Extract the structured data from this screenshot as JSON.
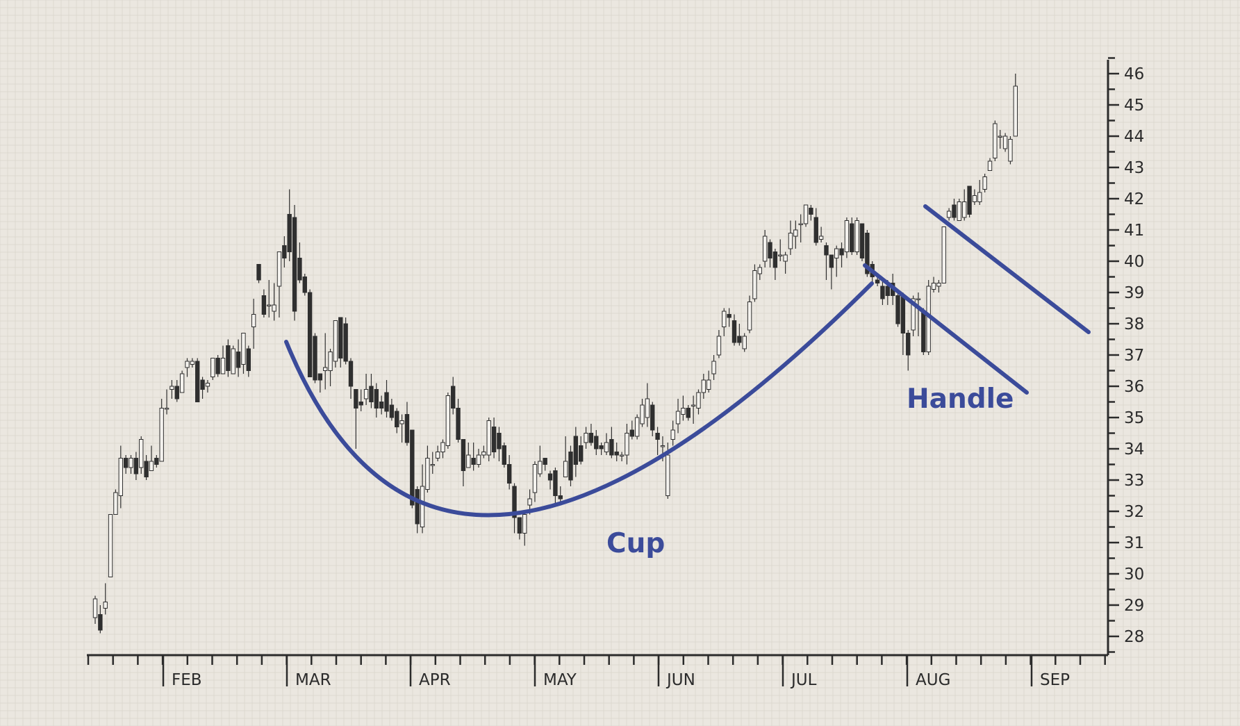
{
  "colors": {
    "background": "#ebe7e0",
    "grid": "#ddd8cf",
    "axis": "#2b2b2b",
    "candle_up_fill": "#f4f2ee",
    "candle_down_fill": "#2f2f2f",
    "candle_outline": "#2f2f2f",
    "annotation": "#3b4b9a"
  },
  "chart_data": {
    "type": "candlestick",
    "title": "",
    "xlabel": "",
    "ylabel": "",
    "ylim": [
      27.5,
      46.6
    ],
    "y_ticks": [
      "28",
      "29",
      "30",
      "31",
      "32",
      "33",
      "34",
      "35",
      "36",
      "37",
      "38",
      "39",
      "40",
      "41",
      "42",
      "43",
      "44",
      "45",
      "46"
    ],
    "months": [
      "FEB",
      "MAR",
      "APR",
      "MAY",
      "JUN",
      "JUL",
      "AUG",
      "SEP"
    ],
    "grid": true,
    "ohlc": [
      [
        28.6,
        29.2,
        28.4,
        29.3
      ],
      [
        28.7,
        28.2,
        28.1,
        29.0
      ],
      [
        28.9,
        29.1,
        28.7,
        29.7
      ],
      [
        29.9,
        31.9,
        29.9,
        31.9
      ],
      [
        31.9,
        32.6,
        31.9,
        32.7
      ],
      [
        32.5,
        33.7,
        32.1,
        34.1
      ],
      [
        33.7,
        33.4,
        33.2,
        33.8
      ],
      [
        33.4,
        33.7,
        33.2,
        33.8
      ],
      [
        33.7,
        33.2,
        33.0,
        33.9
      ],
      [
        33.4,
        34.3,
        33.2,
        34.4
      ],
      [
        33.6,
        33.1,
        33.0,
        33.8
      ],
      [
        33.3,
        33.6,
        33.3,
        34.1
      ],
      [
        33.7,
        33.5,
        33.4,
        33.8
      ],
      [
        33.6,
        35.3,
        33.6,
        35.6
      ],
      [
        35.3,
        35.3,
        35.1,
        35.9
      ],
      [
        35.9,
        36.0,
        35.6,
        36.2
      ],
      [
        36.0,
        35.6,
        35.5,
        36.2
      ],
      [
        35.8,
        36.4,
        35.8,
        36.5
      ],
      [
        36.6,
        36.8,
        36.3,
        36.9
      ],
      [
        36.7,
        36.8,
        36.6,
        36.9
      ],
      [
        36.8,
        35.5,
        35.5,
        36.9
      ],
      [
        36.2,
        35.9,
        35.6,
        36.3
      ],
      [
        36.0,
        36.1,
        35.8,
        36.2
      ],
      [
        36.3,
        36.9,
        36.2,
        36.9
      ],
      [
        36.9,
        36.4,
        36.3,
        37.0
      ],
      [
        36.4,
        36.9,
        36.4,
        37.3
      ],
      [
        37.3,
        36.5,
        36.3,
        37.5
      ],
      [
        36.4,
        37.2,
        36.4,
        37.3
      ],
      [
        37.1,
        36.6,
        36.3,
        37.5
      ],
      [
        36.7,
        37.7,
        36.4,
        37.7
      ],
      [
        37.2,
        36.5,
        36.3,
        37.3
      ],
      [
        37.9,
        38.3,
        37.2,
        38.8
      ],
      [
        39.9,
        39.4,
        39.3,
        39.9
      ],
      [
        38.9,
        38.3,
        38.2,
        39.1
      ],
      [
        38.6,
        38.6,
        38.2,
        39.4
      ],
      [
        38.4,
        38.6,
        38.1,
        39.3
      ],
      [
        39.2,
        40.3,
        38.2,
        40.3
      ],
      [
        40.5,
        40.1,
        39.8,
        40.8
      ],
      [
        41.5,
        40.3,
        40.0,
        42.3
      ],
      [
        41.4,
        38.4,
        38.1,
        41.8
      ],
      [
        40.1,
        39.4,
        39.3,
        40.6
      ],
      [
        39.5,
        39.0,
        38.9,
        39.6
      ],
      [
        39.0,
        36.3,
        36.3,
        39.1
      ],
      [
        37.6,
        36.2,
        36.1,
        37.7
      ],
      [
        36.4,
        36.2,
        35.8,
        36.4
      ],
      [
        36.5,
        36.6,
        35.9,
        37.7
      ],
      [
        36.5,
        37.1,
        36.0,
        37.2
      ],
      [
        36.8,
        38.1,
        36.6,
        38.1
      ],
      [
        38.2,
        36.9,
        36.6,
        38.2
      ],
      [
        38.0,
        36.8,
        36.7,
        38.2
      ],
      [
        36.8,
        36.0,
        35.6,
        36.9
      ],
      [
        35.9,
        35.3,
        34.0,
        35.9
      ],
      [
        35.5,
        35.4,
        35.2,
        35.9
      ],
      [
        35.6,
        35.9,
        35.4,
        36.4
      ],
      [
        36.0,
        35.5,
        35.3,
        36.4
      ],
      [
        35.9,
        35.3,
        35.0,
        36.1
      ],
      [
        35.5,
        35.3,
        35.1,
        35.7
      ],
      [
        35.8,
        35.2,
        35.0,
        36.2
      ],
      [
        35.4,
        35.0,
        34.9,
        35.6
      ],
      [
        35.2,
        34.7,
        34.5,
        35.3
      ],
      [
        34.8,
        34.9,
        34.2,
        35.1
      ],
      [
        35.1,
        34.2,
        34.1,
        35.5
      ],
      [
        34.6,
        32.2,
        32.1,
        34.6
      ],
      [
        32.7,
        31.6,
        31.3,
        32.8
      ],
      [
        31.5,
        32.8,
        31.3,
        33.5
      ],
      [
        32.7,
        33.7,
        32.6,
        34.1
      ],
      [
        33.5,
        33.5,
        33.2,
        33.9
      ],
      [
        33.7,
        33.9,
        33.6,
        34.1
      ],
      [
        33.9,
        34.2,
        33.7,
        34.3
      ],
      [
        34.1,
        35.7,
        34.0,
        35.8
      ],
      [
        36.0,
        35.3,
        35.1,
        36.3
      ],
      [
        35.3,
        34.3,
        34.2,
        35.6
      ],
      [
        34.3,
        33.3,
        32.8,
        34.3
      ],
      [
        33.4,
        33.8,
        33.4,
        34.2
      ],
      [
        33.7,
        33.5,
        33.3,
        34.2
      ],
      [
        33.5,
        33.8,
        33.4,
        34.0
      ],
      [
        33.8,
        33.9,
        33.7,
        34.1
      ],
      [
        33.8,
        34.9,
        33.6,
        35.0
      ],
      [
        34.7,
        33.9,
        33.7,
        35.0
      ],
      [
        34.5,
        34.0,
        33.6,
        34.7
      ],
      [
        34.1,
        33.5,
        33.4,
        34.2
      ],
      [
        33.5,
        32.9,
        32.7,
        33.8
      ],
      [
        32.8,
        31.8,
        31.3,
        32.9
      ],
      [
        31.8,
        31.3,
        31.1,
        31.8
      ],
      [
        31.3,
        31.9,
        30.9,
        32.0
      ],
      [
        32.2,
        32.4,
        31.9,
        32.7
      ],
      [
        32.6,
        33.5,
        32.3,
        33.6
      ],
      [
        33.2,
        33.6,
        33.1,
        34.1
      ],
      [
        33.7,
        33.5,
        33.3,
        33.7
      ],
      [
        33.2,
        33.0,
        32.7,
        33.3
      ],
      [
        33.3,
        32.5,
        32.2,
        33.4
      ],
      [
        32.5,
        32.4,
        32.2,
        32.8
      ],
      [
        33.1,
        33.6,
        33.1,
        34.4
      ],
      [
        33.9,
        33.0,
        32.8,
        34.1
      ],
      [
        34.4,
        33.5,
        33.1,
        34.7
      ],
      [
        34.1,
        33.6,
        33.5,
        34.4
      ],
      [
        34.2,
        34.5,
        34.0,
        34.7
      ],
      [
        34.5,
        34.2,
        34.1,
        34.8
      ],
      [
        34.4,
        34.0,
        33.8,
        34.6
      ],
      [
        34.1,
        34.0,
        33.8,
        34.2
      ],
      [
        33.9,
        34.2,
        33.8,
        34.5
      ],
      [
        34.3,
        33.8,
        33.7,
        34.7
      ],
      [
        33.9,
        33.8,
        33.6,
        34.2
      ],
      [
        33.8,
        33.8,
        33.6,
        33.9
      ],
      [
        33.8,
        34.5,
        33.5,
        34.8
      ],
      [
        34.6,
        34.4,
        34.3,
        34.9
      ],
      [
        34.4,
        35.0,
        34.3,
        35.1
      ],
      [
        34.8,
        35.4,
        34.7,
        35.6
      ],
      [
        35.0,
        35.6,
        34.7,
        36.1
      ],
      [
        35.4,
        34.6,
        34.4,
        35.5
      ],
      [
        34.5,
        34.3,
        33.8,
        34.7
      ],
      [
        34.1,
        34.1,
        33.6,
        34.4
      ],
      [
        32.5,
        33.8,
        32.4,
        34.2
      ],
      [
        34.3,
        34.6,
        34.1,
        34.9
      ],
      [
        34.8,
        35.2,
        34.5,
        35.6
      ],
      [
        35.1,
        35.3,
        34.9,
        35.7
      ],
      [
        35.3,
        35.0,
        34.9,
        35.4
      ],
      [
        35.4,
        35.4,
        34.8,
        35.7
      ],
      [
        35.3,
        35.8,
        35.1,
        35.9
      ],
      [
        35.8,
        36.2,
        35.6,
        36.4
      ],
      [
        35.9,
        36.2,
        35.8,
        36.5
      ],
      [
        36.4,
        36.8,
        36.2,
        37.0
      ],
      [
        37.0,
        37.6,
        36.9,
        37.8
      ],
      [
        37.9,
        38.4,
        37.6,
        38.5
      ],
      [
        38.3,
        38.2,
        37.9,
        38.5
      ],
      [
        38.1,
        37.4,
        37.3,
        38.3
      ],
      [
        37.6,
        37.4,
        37.3,
        38.0
      ],
      [
        37.2,
        37.6,
        37.1,
        37.7
      ],
      [
        37.8,
        38.7,
        37.7,
        38.9
      ],
      [
        38.8,
        39.7,
        38.7,
        39.9
      ],
      [
        39.6,
        39.8,
        39.4,
        39.9
      ],
      [
        40.0,
        40.8,
        39.8,
        41.0
      ],
      [
        40.6,
        40.1,
        39.8,
        40.7
      ],
      [
        40.3,
        39.8,
        39.4,
        40.4
      ],
      [
        40.2,
        40.2,
        40.0,
        40.7
      ],
      [
        40.0,
        40.2,
        39.6,
        40.3
      ],
      [
        40.4,
        40.9,
        40.2,
        41.3
      ],
      [
        40.8,
        41.0,
        40.4,
        41.3
      ],
      [
        41.2,
        41.2,
        40.6,
        41.5
      ],
      [
        41.2,
        41.8,
        41.1,
        41.8
      ],
      [
        41.7,
        41.5,
        41.3,
        41.8
      ],
      [
        41.4,
        40.6,
        40.5,
        41.7
      ],
      [
        40.7,
        40.8,
        40.6,
        41.1
      ],
      [
        40.5,
        40.2,
        39.4,
        40.6
      ],
      [
        40.2,
        39.8,
        39.1,
        40.2
      ],
      [
        40.1,
        40.4,
        39.5,
        40.5
      ],
      [
        40.4,
        40.2,
        39.8,
        40.6
      ],
      [
        40.3,
        41.3,
        40.1,
        41.4
      ],
      [
        41.2,
        40.3,
        40.2,
        41.4
      ],
      [
        40.3,
        41.3,
        40.2,
        41.4
      ],
      [
        41.2,
        40.1,
        40.0,
        41.2
      ],
      [
        40.9,
        39.6,
        39.5,
        41.0
      ],
      [
        39.9,
        39.5,
        39.3,
        40.0
      ],
      [
        39.4,
        39.3,
        39.2,
        39.5
      ],
      [
        39.2,
        38.8,
        38.6,
        39.5
      ],
      [
        39.2,
        38.9,
        38.6,
        39.4
      ],
      [
        39.3,
        38.9,
        38.6,
        39.6
      ],
      [
        38.9,
        38.0,
        37.9,
        39.0
      ],
      [
        38.9,
        37.7,
        37.0,
        39.0
      ],
      [
        37.7,
        37.0,
        36.5,
        37.8
      ],
      [
        37.8,
        38.8,
        37.6,
        38.9
      ],
      [
        38.8,
        38.8,
        37.6,
        39.0
      ],
      [
        38.4,
        37.1,
        37.0,
        38.5
      ],
      [
        37.1,
        39.2,
        37.0,
        39.4
      ],
      [
        39.1,
        39.3,
        39.0,
        39.5
      ],
      [
        39.2,
        39.3,
        39.0,
        39.4
      ],
      [
        39.3,
        41.1,
        39.3,
        41.1
      ],
      [
        41.4,
        41.6,
        41.3,
        41.7
      ],
      [
        41.8,
        41.4,
        41.3,
        42.0
      ],
      [
        41.3,
        41.9,
        41.3,
        42.0
      ],
      [
        41.4,
        41.9,
        41.3,
        42.3
      ],
      [
        42.4,
        41.5,
        41.4,
        42.4
      ],
      [
        41.9,
        42.1,
        41.8,
        42.3
      ],
      [
        41.9,
        42.2,
        41.8,
        42.6
      ],
      [
        42.3,
        42.7,
        42.2,
        42.8
      ],
      [
        42.9,
        43.2,
        42.9,
        43.3
      ],
      [
        43.3,
        44.4,
        43.2,
        44.5
      ],
      [
        44.0,
        44.0,
        43.6,
        44.2
      ],
      [
        43.6,
        44.0,
        43.5,
        44.1
      ],
      [
        43.2,
        43.9,
        43.1,
        44.0
      ],
      [
        44.0,
        45.6,
        44.0,
        46.0
      ]
    ],
    "annotations": [
      {
        "label": "Cup"
      },
      {
        "label": "Handle"
      }
    ]
  }
}
